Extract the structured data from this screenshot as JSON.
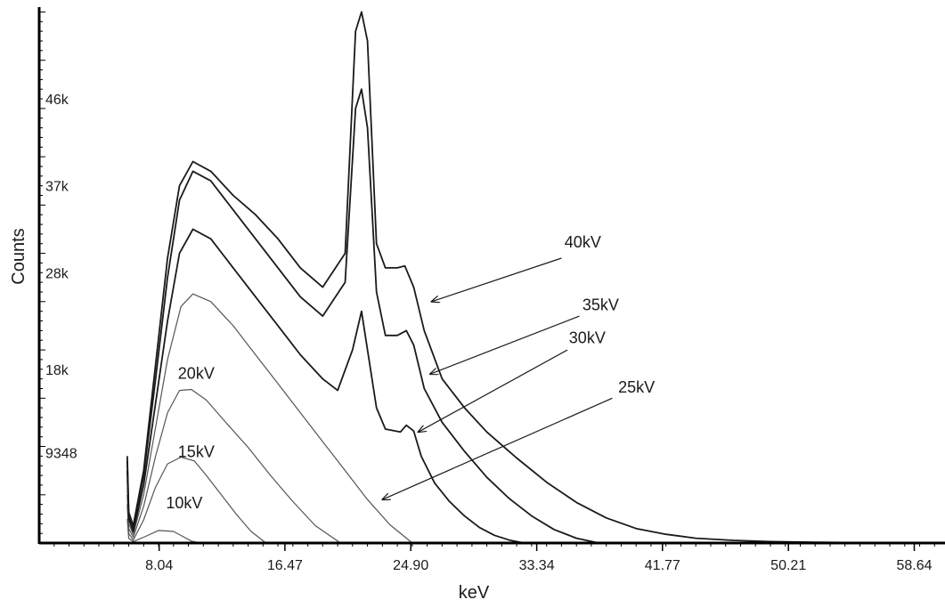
{
  "chart_data": {
    "type": "line",
    "title": "",
    "xlabel": "keV",
    "ylabel": "Counts",
    "xlim": [
      0,
      60.7
    ],
    "ylim": [
      0,
      55500
    ],
    "x_ticks": [
      8.04,
      16.47,
      24.9,
      33.34,
      41.77,
      50.21,
      58.64
    ],
    "x_tick_labels": [
      "8.04",
      "16.47",
      "24.90",
      "33.34",
      "41.77",
      "50.21",
      "58.64"
    ],
    "y_ticks": [
      9348,
      18000,
      28000,
      37000,
      46000
    ],
    "y_tick_labels": [
      "9348",
      "18k",
      "28k",
      "37k",
      "46k"
    ],
    "grid": false,
    "legend": "none",
    "series": [
      {
        "name": "10kV",
        "stroke": 1.2,
        "color": "#555555",
        "x": [
          5.9,
          6.0,
          6.3,
          7.0,
          8.0,
          9.0,
          9.6,
          10.2,
          10.8
        ],
        "y": [
          2500,
          500,
          150,
          600,
          1300,
          1200,
          700,
          200,
          0
        ]
      },
      {
        "name": "15kV",
        "stroke": 1.2,
        "color": "#555555",
        "x": [
          5.9,
          6.0,
          6.3,
          7.0,
          7.8,
          8.6,
          9.5,
          10.4,
          11.2,
          12.2,
          13.2,
          14.2,
          15.2
        ],
        "y": [
          4000,
          1000,
          300,
          2400,
          5800,
          8200,
          8900,
          8500,
          7000,
          5000,
          3000,
          1200,
          0
        ]
      },
      {
        "name": "20kV",
        "stroke": 1.2,
        "color": "#555555",
        "x": [
          5.9,
          6.0,
          6.3,
          7.0,
          7.8,
          8.6,
          9.4,
          10.2,
          11.2,
          12.5,
          14.0,
          15.5,
          17.0,
          18.5,
          20.2
        ],
        "y": [
          5000,
          1500,
          600,
          3800,
          9000,
          13500,
          15800,
          15900,
          14800,
          12500,
          9900,
          7000,
          4300,
          1800,
          0
        ]
      },
      {
        "name": "25kV",
        "stroke": 1.2,
        "color": "#555555",
        "x": [
          5.9,
          6.0,
          6.3,
          7.0,
          7.8,
          8.6,
          9.5,
          10.3,
          11.5,
          13.0,
          14.5,
          16.0,
          17.5,
          19.0,
          20.5,
          22.0,
          23.5,
          25.0
        ],
        "y": [
          6500,
          2000,
          900,
          5000,
          12000,
          19000,
          24500,
          25800,
          25000,
          22500,
          19500,
          16500,
          13500,
          10500,
          7500,
          4500,
          1900,
          0
        ]
      },
      {
        "name": "30kV",
        "stroke": 1.8,
        "color": "#1a1a1a",
        "x": [
          5.9,
          6.0,
          6.3,
          7.0,
          7.8,
          8.6,
          9.4,
          10.3,
          11.5,
          13.0,
          14.5,
          16.0,
          17.5,
          19.0,
          20.0,
          21.0,
          21.6,
          22.1,
          22.6,
          23.2,
          24.2,
          24.6,
          25.1,
          25.6,
          26.5,
          27.5,
          28.5,
          29.5,
          30.5,
          31.5,
          32.5
        ],
        "y": [
          7500,
          2500,
          1200,
          6000,
          14500,
          23000,
          30000,
          32500,
          31500,
          28500,
          25500,
          22500,
          19500,
          17000,
          15800,
          20000,
          24000,
          19000,
          14000,
          11800,
          11500,
          12200,
          11600,
          9000,
          6200,
          4300,
          2800,
          1600,
          800,
          300,
          0
        ]
      },
      {
        "name": "35kV",
        "stroke": 1.8,
        "color": "#1a1a1a",
        "x": [
          5.9,
          6.0,
          6.3,
          7.0,
          7.8,
          8.6,
          9.4,
          10.3,
          11.5,
          13.0,
          14.5,
          16.0,
          17.5,
          19.0,
          20.5,
          21.2,
          21.6,
          22.0,
          22.6,
          23.2,
          24.0,
          24.6,
          25.1,
          25.8,
          27.0,
          28.5,
          30.0,
          31.5,
          33.0,
          34.5,
          36.0,
          37.5
        ],
        "y": [
          8500,
          3000,
          1500,
          7000,
          17000,
          27500,
          35500,
          38500,
          37500,
          34500,
          31500,
          28500,
          25500,
          23500,
          27000,
          45000,
          47000,
          43000,
          26000,
          21500,
          21500,
          22000,
          20500,
          16000,
          12500,
          9500,
          6800,
          4600,
          2800,
          1400,
          500,
          0
        ]
      },
      {
        "name": "40kV",
        "stroke": 1.8,
        "color": "#1a1a1a",
        "x": [
          5.9,
          6.0,
          6.3,
          7.0,
          7.8,
          8.6,
          9.4,
          10.3,
          11.5,
          13.0,
          14.5,
          16.0,
          17.5,
          19.0,
          20.5,
          21.2,
          21.6,
          22.0,
          22.6,
          23.2,
          24.0,
          24.5,
          25.1,
          25.8,
          27.0,
          28.5,
          30.0,
          32.0,
          34.0,
          36.0,
          38.0,
          40.0,
          42.0,
          44.0,
          46.5,
          49.0,
          52.0,
          56.0,
          60.7
        ],
        "y": [
          9000,
          3200,
          1800,
          7500,
          18500,
          29500,
          37000,
          39500,
          38500,
          36000,
          34000,
          31500,
          28500,
          26500,
          30000,
          53000,
          55000,
          52000,
          31000,
          28500,
          28500,
          28700,
          26500,
          22000,
          17000,
          14000,
          11500,
          8800,
          6300,
          4200,
          2600,
          1500,
          900,
          500,
          280,
          150,
          80,
          40,
          0
        ]
      }
    ],
    "annotations": [
      {
        "text": "40kV",
        "label_x": 35.2,
        "label_y": 30600,
        "tail_x": 35.0,
        "tail_y": 29500,
        "head_x": 26.3,
        "head_y": 25000,
        "arrow": true
      },
      {
        "text": "35kV",
        "label_x": 36.4,
        "label_y": 24100,
        "tail_x": 36.2,
        "tail_y": 23500,
        "head_x": 26.2,
        "head_y": 17500,
        "arrow": true
      },
      {
        "text": "30kV",
        "label_x": 35.5,
        "label_y": 20700,
        "tail_x": 35.4,
        "tail_y": 20000,
        "head_x": 25.4,
        "head_y": 11500,
        "arrow": true
      },
      {
        "text": "25kV",
        "label_x": 38.8,
        "label_y": 15600,
        "tail_x": 38.4,
        "tail_y": 15000,
        "head_x": 23.0,
        "head_y": 4500,
        "arrow": true
      },
      {
        "text": "20kV",
        "label_x": 9.3,
        "label_y": 17000,
        "arrow": false
      },
      {
        "text": "15kV",
        "label_x": 9.3,
        "label_y": 8900,
        "arrow": false
      },
      {
        "text": "10kV",
        "label_x": 8.5,
        "label_y": 3600,
        "arrow": false
      }
    ]
  }
}
